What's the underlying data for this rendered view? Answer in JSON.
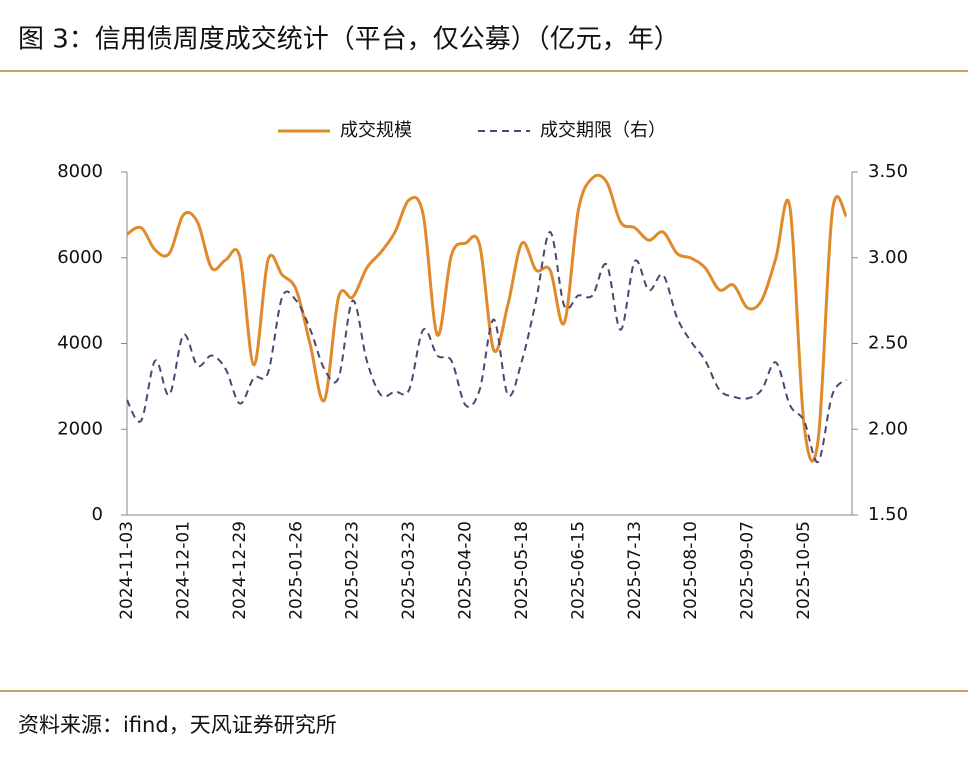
{
  "chart_data": {
    "type": "line",
    "title": "图 3：信用债周度成交统计（平台，仅公募）（亿元，年）",
    "source": "资料来源：ifind，天风证券研究所",
    "categories": [
      "2024-11-03",
      null,
      null,
      null,
      "2024-12-01",
      null,
      null,
      null,
      "2024-12-29",
      null,
      null,
      null,
      "2025-01-26",
      null,
      null,
      null,
      "2025-02-23",
      null,
      null,
      null,
      "2025-03-23",
      null,
      null,
      null,
      "2025-04-20",
      null,
      null,
      null,
      "2025-05-18",
      null,
      null,
      null,
      "2025-06-15",
      null,
      null,
      null,
      "2025-07-13",
      null,
      null,
      null,
      "2025-08-10",
      null,
      null,
      null,
      "2025-09-07",
      null,
      null,
      null,
      "2025-10-05",
      null,
      null,
      null
    ],
    "series": [
      {
        "name": "成交规模",
        "color": "#e08a2c",
        "dashed": false,
        "values": [
          6550,
          6700,
          6180,
          6100,
          7000,
          6830,
          5760,
          5950,
          6020,
          3500,
          5950,
          5600,
          5250,
          3960,
          2680,
          5080,
          5080,
          5760,
          6130,
          6600,
          7350,
          7000,
          4200,
          6060,
          6340,
          6300,
          3850,
          4900,
          6340,
          5710,
          5710,
          4480,
          7110,
          7860,
          7770,
          6830,
          6700,
          6410,
          6600,
          6100,
          5990,
          5760,
          5250,
          5360,
          4830,
          5010,
          5990,
          7180,
          2100,
          1750,
          7060,
          6970
        ]
      },
      {
        "name": "成交期限（右）",
        "color": "#4f4570",
        "dashed": true,
        "axis": "y2",
        "values": [
          2.17,
          2.05,
          2.4,
          2.2,
          2.55,
          2.37,
          2.43,
          2.35,
          2.15,
          2.3,
          2.33,
          2.77,
          2.75,
          2.58,
          2.35,
          2.3,
          2.75,
          2.4,
          2.2,
          2.22,
          2.23,
          2.58,
          2.43,
          2.4,
          2.14,
          2.23,
          2.64,
          2.2,
          2.4,
          2.75,
          3.15,
          2.72,
          2.78,
          2.78,
          2.96,
          2.58,
          2.98,
          2.81,
          2.9,
          2.65,
          2.51,
          2.4,
          2.23,
          2.19,
          2.18,
          2.23,
          2.39,
          2.14,
          2.05,
          1.81,
          2.2,
          2.29
        ]
      }
    ],
    "ylim": [
      0,
      8000
    ],
    "yticks": [
      0,
      2000,
      4000,
      6000,
      8000
    ],
    "y2lim": [
      1.5,
      3.5
    ],
    "y2ticks": [
      {
        "value": 1.5,
        "label": "1.50"
      },
      {
        "value": 2,
        "label": "2.00"
      },
      {
        "value": 2.5,
        "label": "2.50"
      },
      {
        "value": 3,
        "label": "3.00"
      },
      {
        "value": 3.5,
        "label": "3.50"
      }
    ],
    "grid": false,
    "legend": "top"
  }
}
